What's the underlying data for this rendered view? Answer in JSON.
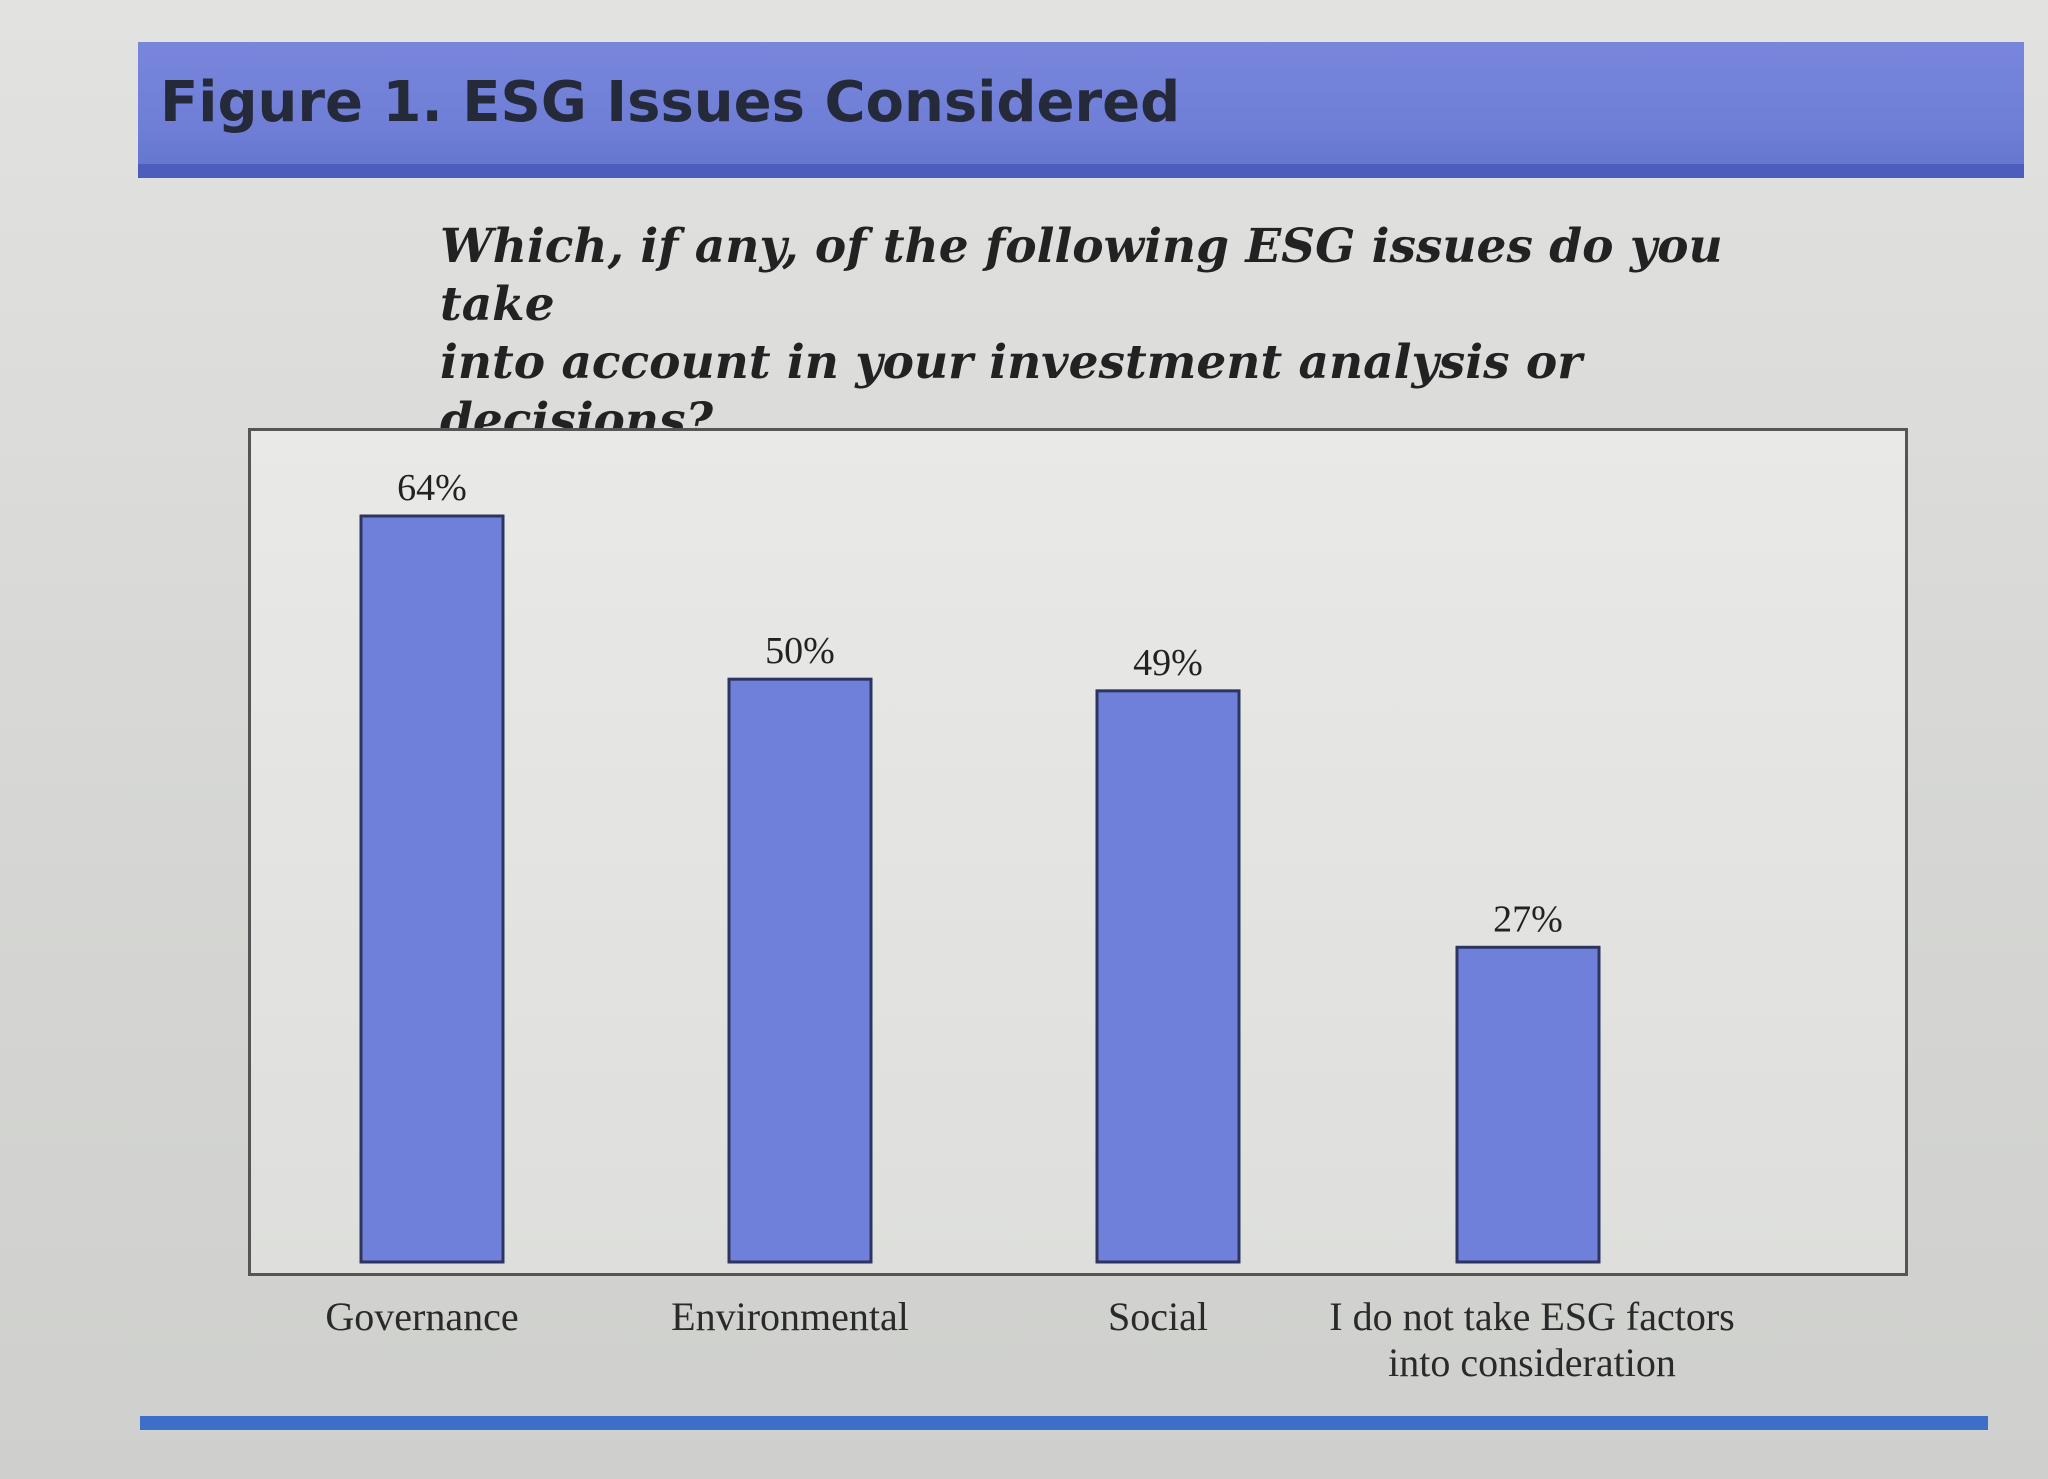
{
  "figure": {
    "title": "Figure 1.  ESG Issues Considered"
  },
  "colors": {
    "header": "#7283d8",
    "bar": "#6f80da",
    "footer_line": "#3d6fc8"
  },
  "chart_data": {
    "type": "bar",
    "title": "Which, if any, of the following ESG issues do you take into account in your investment analysis or decisions?",
    "title_lines": [
      "Which, if any, of the following ESG issues do you take",
      "into account in your investment analysis or decisions?"
    ],
    "categories": [
      "Governance",
      "Environmental",
      "Social",
      "I do not take ESG factors into consideration"
    ],
    "category_lines": [
      [
        "Governance"
      ],
      [
        "Environmental"
      ],
      [
        "Social"
      ],
      [
        "I do not take ESG factors",
        "into consideration"
      ]
    ],
    "values": [
      64,
      50,
      49,
      27
    ],
    "value_labels": [
      "64%",
      "50%",
      "49%",
      "27%"
    ],
    "unit": "%",
    "xlabel": "",
    "ylabel": "",
    "ylim": [
      0,
      70
    ],
    "grid": false,
    "legend": "none"
  }
}
